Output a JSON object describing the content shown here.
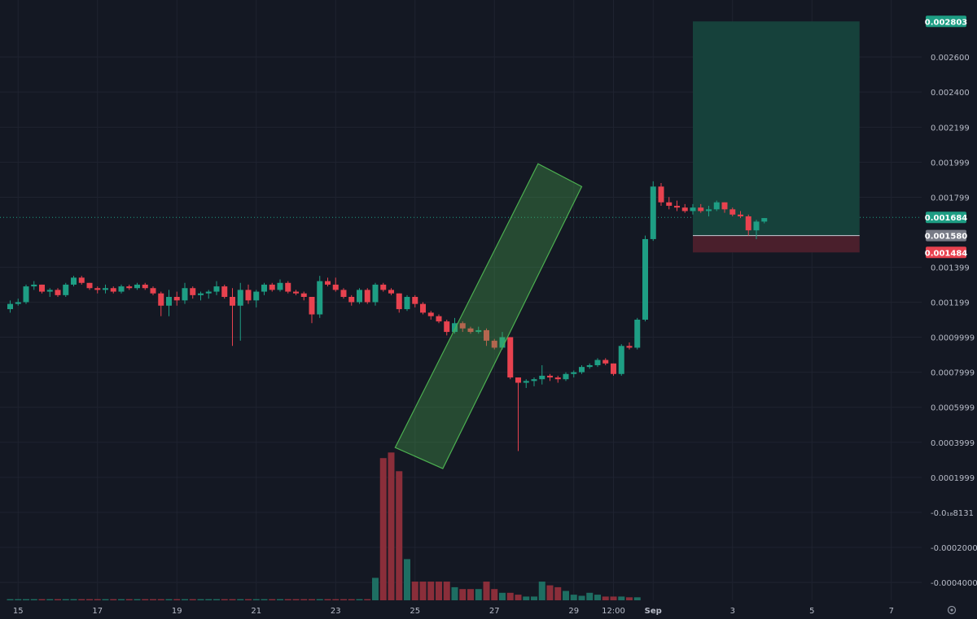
{
  "chart_data": {
    "type": "candlestick",
    "colors": {
      "background": "#141823",
      "grid": "#1f2330",
      "up": "#1e9e84",
      "down": "#e8424f",
      "channel_fill": "#4caf5055",
      "channel_stroke": "#4caf50",
      "target_fill": "#16413b",
      "stop_fill": "#4a1f2c",
      "label_text": "#b8bcc8",
      "volume_up": "#1e6e62",
      "volume_down": "#8a2e3a"
    },
    "price_axis": {
      "ticks": [
        "0.002600",
        "0.002400",
        "0.002199",
        "0.001999",
        "0.001799",
        "0.001399",
        "0.001199",
        "0.0009999",
        "0.0007999",
        "0.0005999",
        "0.0003999",
        "0.0001999",
        "-0.0₁₈8131",
        "-0.0002000",
        "-0.0004000"
      ],
      "tick_values": [
        0.0026,
        0.0024,
        0.002199,
        0.001999,
        0.001799,
        0.001399,
        0.001199,
        0.0009999,
        0.0007999,
        0.0005999,
        0.0003999,
        0.0001999,
        0.0,
        -0.0002,
        -0.0004
      ],
      "range": [
        -0.00047,
        0.00285
      ]
    },
    "time_axis": {
      "ticks": [
        "15",
        "17",
        "19",
        "21",
        "23",
        "25",
        "27",
        "29",
        "12:00",
        "Sep",
        "3",
        "5",
        "7"
      ],
      "tick_bar_index": [
        1,
        11,
        21,
        31,
        41,
        51,
        61,
        71,
        76,
        81,
        91,
        101,
        111
      ]
    },
    "price_tags": [
      {
        "label": "0.002803",
        "value": 0.002803,
        "kind": "target"
      },
      {
        "label": "0.001684",
        "value": 0.001684,
        "kind": "current"
      },
      {
        "label": "0.001580",
        "value": 0.00158,
        "kind": "entry"
      },
      {
        "label": "0.001484",
        "value": 0.001484,
        "kind": "stop"
      }
    ],
    "position": {
      "start_bar": 86,
      "end_bar": 107,
      "entry": 0.00158,
      "target": 0.002803,
      "stop": 0.001484
    },
    "channel": {
      "points": [
        [
          48.5,
          0.00037
        ],
        [
          66.5,
          0.00199
        ],
        [
          72,
          0.00186
        ],
        [
          54.5,
          0.00025
        ]
      ]
    },
    "candles": [
      [
        0.00116,
        0.00121,
        0.00114,
        0.00119
      ],
      [
        0.00119,
        0.00122,
        0.00118,
        0.0012
      ],
      [
        0.0012,
        0.0013,
        0.00119,
        0.00129
      ],
      [
        0.00129,
        0.00132,
        0.00127,
        0.0013
      ],
      [
        0.0013,
        0.0013,
        0.00125,
        0.00126
      ],
      [
        0.00126,
        0.00128,
        0.00123,
        0.00127
      ],
      [
        0.00127,
        0.00128,
        0.00123,
        0.00124
      ],
      [
        0.00124,
        0.00131,
        0.00123,
        0.0013
      ],
      [
        0.0013,
        0.00135,
        0.00129,
        0.00134
      ],
      [
        0.00134,
        0.00135,
        0.0013,
        0.00131
      ],
      [
        0.00131,
        0.00131,
        0.00127,
        0.00128
      ],
      [
        0.00128,
        0.00129,
        0.00125,
        0.00127
      ],
      [
        0.00127,
        0.0013,
        0.00125,
        0.00128
      ],
      [
        0.00128,
        0.00129,
        0.00125,
        0.00126
      ],
      [
        0.00126,
        0.0013,
        0.00125,
        0.00129
      ],
      [
        0.00129,
        0.0013,
        0.00127,
        0.00128
      ],
      [
        0.00128,
        0.00131,
        0.00127,
        0.0013
      ],
      [
        0.0013,
        0.00131,
        0.00127,
        0.00128
      ],
      [
        0.00128,
        0.00129,
        0.00124,
        0.00125
      ],
      [
        0.00125,
        0.00126,
        0.00112,
        0.00118
      ],
      [
        0.00118,
        0.00127,
        0.00112,
        0.00123
      ],
      [
        0.00123,
        0.00126,
        0.00118,
        0.00121
      ],
      [
        0.00121,
        0.00131,
        0.00119,
        0.00128
      ],
      [
        0.00128,
        0.00129,
        0.00122,
        0.00124
      ],
      [
        0.00124,
        0.00126,
        0.00121,
        0.00125
      ],
      [
        0.00125,
        0.00127,
        0.00122,
        0.00126
      ],
      [
        0.00126,
        0.00132,
        0.00124,
        0.00129
      ],
      [
        0.00129,
        0.0013,
        0.00122,
        0.00123
      ],
      [
        0.00123,
        0.00128,
        0.00095,
        0.00118
      ],
      [
        0.00118,
        0.00131,
        0.00098,
        0.00127
      ],
      [
        0.00127,
        0.0013,
        0.00119,
        0.00121
      ],
      [
        0.00121,
        0.00127,
        0.00117,
        0.00126
      ],
      [
        0.00126,
        0.00131,
        0.00124,
        0.0013
      ],
      [
        0.0013,
        0.00131,
        0.00126,
        0.00127
      ],
      [
        0.00127,
        0.00133,
        0.00126,
        0.00131
      ],
      [
        0.00131,
        0.00132,
        0.00125,
        0.00126
      ],
      [
        0.00126,
        0.00127,
        0.00124,
        0.00125
      ],
      [
        0.00125,
        0.00126,
        0.00121,
        0.00123
      ],
      [
        0.00123,
        0.00123,
        0.00108,
        0.00113
      ],
      [
        0.00113,
        0.00135,
        0.00111,
        0.00132
      ],
      [
        0.00132,
        0.00134,
        0.00129,
        0.0013
      ],
      [
        0.0013,
        0.00134,
        0.00126,
        0.00127
      ],
      [
        0.00127,
        0.00128,
        0.00122,
        0.00123
      ],
      [
        0.00123,
        0.00124,
        0.00118,
        0.0012
      ],
      [
        0.0012,
        0.00128,
        0.00119,
        0.00127
      ],
      [
        0.00127,
        0.00128,
        0.00119,
        0.0012
      ],
      [
        0.0012,
        0.00131,
        0.00118,
        0.0013
      ],
      [
        0.0013,
        0.00131,
        0.00126,
        0.00127
      ],
      [
        0.00127,
        0.00128,
        0.00124,
        0.00125
      ],
      [
        0.00125,
        0.00125,
        0.00114,
        0.00116
      ],
      [
        0.00116,
        0.00124,
        0.00115,
        0.00123
      ],
      [
        0.00123,
        0.00124,
        0.00117,
        0.00119
      ],
      [
        0.00119,
        0.0012,
        0.00113,
        0.00114
      ],
      [
        0.00114,
        0.00115,
        0.0011,
        0.00112
      ],
      [
        0.00112,
        0.00113,
        0.00108,
        0.00109
      ],
      [
        0.00109,
        0.0011,
        0.00101,
        0.00103
      ],
      [
        0.00103,
        0.00111,
        0.00102,
        0.00108
      ],
      [
        0.00108,
        0.00109,
        0.00103,
        0.00105
      ],
      [
        0.00105,
        0.00106,
        0.00102,
        0.00103
      ],
      [
        0.00103,
        0.00106,
        0.00102,
        0.00104
      ],
      [
        0.00104,
        0.00105,
        0.00095,
        0.00098
      ],
      [
        0.00098,
        0.00099,
        0.00093,
        0.00094
      ],
      [
        0.00094,
        0.00103,
        0.00093,
        0.001
      ],
      [
        0.001,
        0.001,
        0.00076,
        0.00077
      ],
      [
        0.00077,
        0.00077,
        0.00035,
        0.00074
      ],
      [
        0.00074,
        0.00076,
        0.00071,
        0.00075
      ],
      [
        0.00075,
        0.00077,
        0.00072,
        0.00076
      ],
      [
        0.00076,
        0.00084,
        0.00073,
        0.00078
      ],
      [
        0.00078,
        0.00079,
        0.00075,
        0.00077
      ],
      [
        0.00077,
        0.00078,
        0.00074,
        0.00076
      ],
      [
        0.00076,
        0.0008,
        0.00075,
        0.00079
      ],
      [
        0.00079,
        0.00081,
        0.00077,
        0.0008
      ]
    ],
    "candles_tail": [
      [
        0.0008,
        0.00084,
        0.00079,
        0.00083
      ],
      [
        0.00083,
        0.00085,
        0.00082,
        0.00084
      ],
      [
        0.00084,
        0.00088,
        0.00083,
        0.00087
      ],
      [
        0.00087,
        0.00088,
        0.00084,
        0.00085
      ],
      [
        0.00085,
        0.00085,
        0.00078,
        0.00079
      ],
      [
        0.00079,
        0.00096,
        0.00078,
        0.00095
      ],
      [
        0.00095,
        0.00097,
        0.00093,
        0.00094
      ],
      [
        0.00094,
        0.00111,
        0.00093,
        0.0011
      ],
      [
        0.0011,
        0.00158,
        0.00109,
        0.00156
      ],
      [
        0.00156,
        0.00189,
        0.00155,
        0.00186
      ],
      [
        0.00186,
        0.00188,
        0.00175,
        0.00177
      ],
      [
        0.00177,
        0.0018,
        0.00173,
        0.00175
      ],
      [
        0.00175,
        0.00178,
        0.00172,
        0.00174
      ],
      [
        0.00174,
        0.00176,
        0.00171,
        0.00172
      ],
      [
        0.00172,
        0.00176,
        0.0017,
        0.00174
      ],
      [
        0.00174,
        0.00176,
        0.00171,
        0.00172
      ],
      [
        0.00172,
        0.00175,
        0.00169,
        0.00173
      ],
      [
        0.00173,
        0.00178,
        0.00172,
        0.00177
      ],
      [
        0.00177,
        0.00177,
        0.00171,
        0.00173
      ],
      [
        0.00173,
        0.00174,
        0.00169,
        0.0017
      ],
      [
        0.0017,
        0.00172,
        0.00168,
        0.00169
      ],
      [
        0.00169,
        0.0017,
        0.00158,
        0.00161
      ],
      [
        0.00161,
        0.00167,
        0.00156,
        0.00166
      ],
      [
        0.00166,
        0.00168,
        0.00165,
        0.00168
      ]
    ],
    "volumes": [
      0.3,
      0.3,
      0.3,
      0.3,
      0.3,
      0.3,
      0.3,
      0.3,
      0.3,
      0.3,
      0.3,
      0.3,
      0.3,
      0.3,
      0.3,
      0.3,
      0.3,
      0.3,
      0.3,
      0.3,
      0.3,
      0.3,
      0.3,
      0.3,
      0.3,
      0.3,
      0.3,
      0.3,
      0.3,
      0.3,
      0.3,
      0.3,
      0.3,
      0.3,
      0.3,
      0.3,
      0.3,
      0.3,
      0.3,
      0.3,
      0.3,
      0.3,
      0.3,
      0.3,
      0.3,
      0.3,
      6.0,
      38.0,
      39.5,
      34.5,
      11.0,
      5.0,
      5.0,
      5.0,
      5.0,
      5.0,
      3.5,
      3.0,
      3.0,
      3.0,
      5.0,
      3.0,
      2.0,
      2.0,
      1.5,
      1.0,
      1.0,
      5.0,
      4.0,
      3.5,
      2.5,
      1.5,
      1.2,
      2.0,
      1.5,
      1.0,
      1.0,
      1.0,
      0.8,
      0.8
    ]
  }
}
